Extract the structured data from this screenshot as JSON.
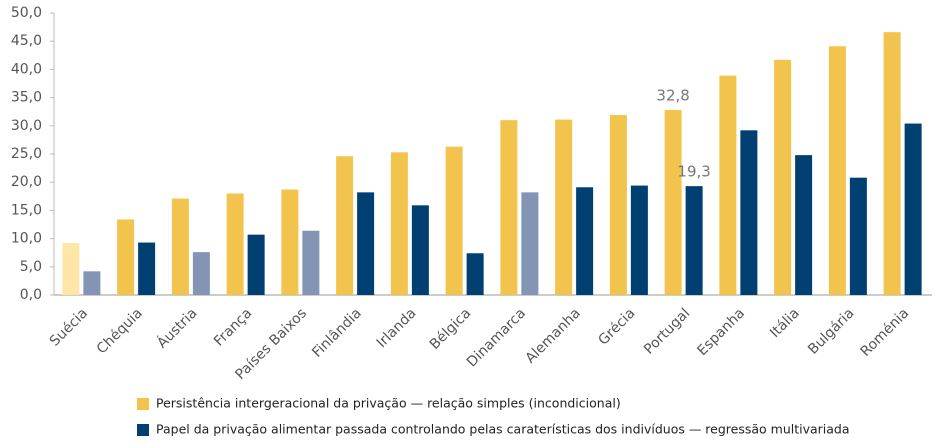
{
  "chart_data": {
    "type": "bar",
    "categories": [
      "Suécia",
      "Chéquia",
      "Áustria",
      "França",
      "Países Baixos",
      "Finlândia",
      "Irlanda",
      "Bélgica",
      "Dinamarca",
      "Alemanha",
      "Grécia",
      "Portugal",
      "Espanha",
      "Itália",
      "Bulgária",
      "Roménia"
    ],
    "series": [
      {
        "name": "Persistência intergeracional da privação — relação simples (incondicional)",
        "color": "#f2c44d",
        "point_colors": [
          "#fde6a6",
          "#f2c44d",
          "#f2c44d",
          "#f2c44d",
          "#f2c44d",
          "#f2c44d",
          "#f2c44d",
          "#f2c44d",
          "#f2c44d",
          "#f2c44d",
          "#f2c44d",
          "#f2c44d",
          "#f2c44d",
          "#f2c44d",
          "#f2c44d",
          "#f2c44d"
        ],
        "values": [
          9.2,
          13.4,
          17.1,
          18.0,
          18.7,
          24.6,
          25.3,
          26.3,
          31.0,
          31.1,
          31.9,
          32.8,
          38.9,
          41.7,
          44.1,
          46.6
        ],
        "value_labels": [
          null,
          null,
          null,
          null,
          null,
          null,
          null,
          null,
          null,
          null,
          null,
          "32,8",
          null,
          null,
          null,
          null
        ]
      },
      {
        "name": "Papel da privação alimentar passada controlando pelas caraterísticas dos indivíduos — regressão multivariada",
        "color": "#003f72",
        "point_colors": [
          "#8494b4",
          "#003f72",
          "#8494b4",
          "#003f72",
          "#8494b4",
          "#003f72",
          "#003f72",
          "#003f72",
          "#8494b4",
          "#003f72",
          "#003f72",
          "#003f72",
          "#003f72",
          "#003f72",
          "#003f72",
          "#003f72"
        ],
        "values": [
          4.2,
          9.3,
          7.6,
          10.7,
          11.4,
          18.2,
          15.9,
          7.4,
          18.2,
          19.1,
          19.4,
          19.3,
          29.2,
          24.8,
          20.8,
          30.4
        ],
        "value_labels": [
          null,
          null,
          null,
          null,
          null,
          null,
          null,
          null,
          null,
          null,
          null,
          "19,3",
          null,
          null,
          null,
          null
        ]
      }
    ],
    "ylim": [
      0,
      50
    ],
    "yticks": [
      {
        "value": 0,
        "label": "0,0"
      },
      {
        "value": 5,
        "label": "5,0"
      },
      {
        "value": 10,
        "label": "10,0"
      },
      {
        "value": 15,
        "label": "15,0"
      },
      {
        "value": 20,
        "label": "20,0"
      },
      {
        "value": 25,
        "label": "25,0"
      },
      {
        "value": 30,
        "label": "30,0"
      },
      {
        "value": 35,
        "label": "35,0"
      },
      {
        "value": 40,
        "label": "40,0"
      },
      {
        "value": 45,
        "label": "45,0"
      },
      {
        "value": 50,
        "label": "50,0"
      }
    ],
    "grid": false
  }
}
